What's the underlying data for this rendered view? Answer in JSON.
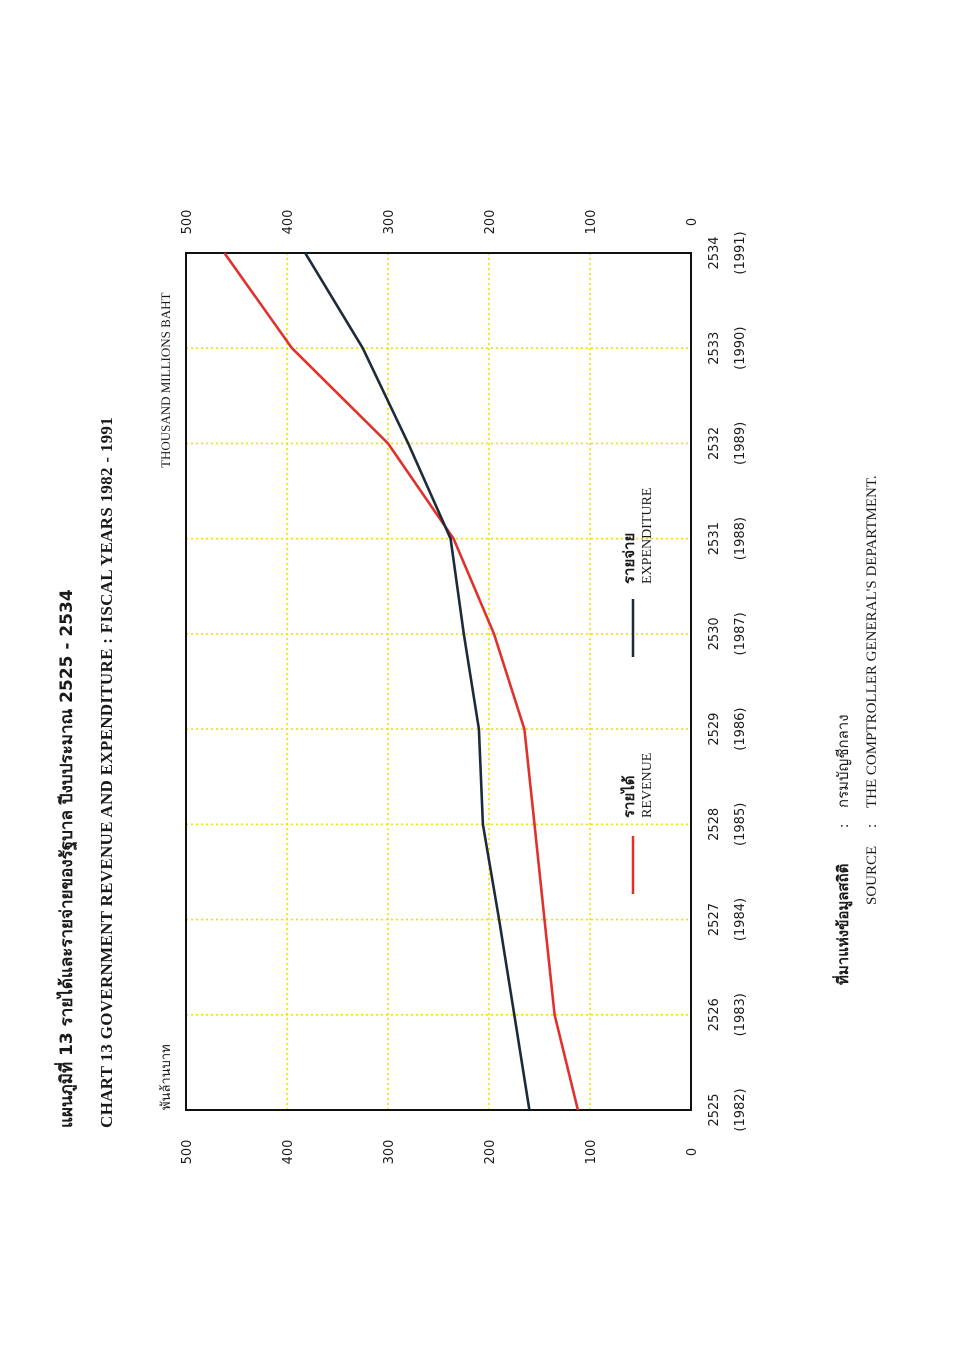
{
  "header": {
    "thai_title": "แผนภูมิที่ 13 รายได้และรายจ่ายของรัฐบาล ปีงบประมาณ 2525 - 2534",
    "en_title": "CHART 13 GOVERNMENT REVENUE AND EXPENDITURE : FISCAL YEARS 1982 - 1991"
  },
  "units": {
    "thai": "พันล้านบาท",
    "en": "THOUSAND MILLIONS BAHT"
  },
  "legend": {
    "revenue_thai": "รายได้",
    "revenue_en": "REVENUE",
    "expenditure_thai": "รายจ่าย",
    "expenditure_en": "EXPENDITURE"
  },
  "source": {
    "thai_label": "ที่มาแห่งข้อมูลสถิติ",
    "thai_sep": ":",
    "thai_value": "กรมบัญชีกลาง",
    "en_label": "SOURCE",
    "en_sep": ":",
    "en_value": "THE COMPTROLLER GENERAL'S DEPARTMENT."
  },
  "colors": {
    "revenue": "#e0312b",
    "expenditure": "#1c2b3a",
    "grid": "#f0e000",
    "frame": "#111111"
  },
  "chart_data": {
    "type": "line",
    "orientation": "rotated 90° counter-clockwise",
    "categories": [
      "2525",
      "2526",
      "2527",
      "2528",
      "2529",
      "2530",
      "2531",
      "2532",
      "2533",
      "2534"
    ],
    "categories_ce": [
      "(1982)",
      "(1983)",
      "(1984)",
      "(1985)",
      "(1986)",
      "(1987)",
      "(1988)",
      "(1989)",
      "(1990)",
      "(1991)"
    ],
    "series": [
      {
        "name": "REVENUE",
        "color": "#e0312b",
        "values": [
          112,
          135,
          145,
          155,
          165,
          195,
          235,
          300,
          395,
          462
        ]
      },
      {
        "name": "EXPENDITURE",
        "color": "#1c2b3a",
        "values": [
          160,
          175,
          190,
          206,
          210,
          225,
          238,
          280,
          325,
          382
        ]
      }
    ],
    "yticks": [
      "0",
      "100",
      "200",
      "300",
      "400",
      "500"
    ],
    "ylim": [
      0,
      500
    ],
    "grid": true
  }
}
